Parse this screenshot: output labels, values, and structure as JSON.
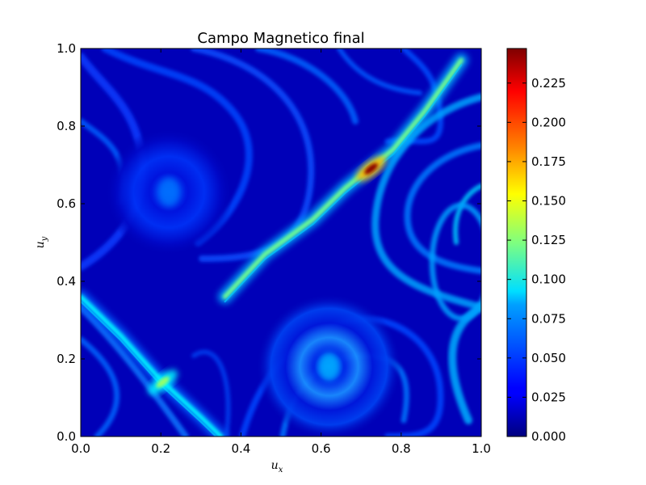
{
  "chart_data": {
    "type": "heatmap",
    "title": "Campo Magnetico final",
    "xlabel": "u",
    "xlabel_sub": "x",
    "ylabel": "u",
    "ylabel_sub": "y",
    "xlim": [
      0.0,
      1.0
    ],
    "ylim": [
      0.0,
      1.0
    ],
    "xticks": [
      "0.0",
      "0.2",
      "0.4",
      "0.6",
      "0.8",
      "1.0"
    ],
    "yticks": [
      "0.0",
      "0.2",
      "0.4",
      "0.6",
      "0.8",
      "1.0"
    ],
    "colormap": "jet",
    "colorbar": {
      "min": 0.0,
      "max": 0.247,
      "ticks": [
        "0.000",
        "0.025",
        "0.050",
        "0.075",
        "0.100",
        "0.125",
        "0.150",
        "0.175",
        "0.200",
        "0.225"
      ]
    },
    "grid": false,
    "features": [
      {
        "kind": "ridge",
        "path": [
          [
            0.36,
            0.36
          ],
          [
            0.46,
            0.47
          ],
          [
            0.58,
            0.56
          ],
          [
            0.66,
            0.64
          ],
          [
            0.72,
            0.69
          ],
          [
            0.78,
            0.74
          ],
          [
            0.86,
            0.84
          ],
          [
            0.95,
            0.97
          ]
        ],
        "peak": 0.12
      },
      {
        "kind": "spot",
        "x": 0.725,
        "y": 0.69,
        "value": 0.245
      },
      {
        "kind": "ridge",
        "path": [
          [
            0.0,
            0.36
          ],
          [
            0.1,
            0.26
          ],
          [
            0.2,
            0.145
          ],
          [
            0.3,
            0.05
          ],
          [
            0.35,
            0.0
          ]
        ],
        "peak": 0.09
      },
      {
        "kind": "spot",
        "x": 0.205,
        "y": 0.14,
        "value": 0.13
      },
      {
        "kind": "vortex",
        "x": 0.22,
        "y": 0.63,
        "value": 0.035
      },
      {
        "kind": "vortex",
        "x": 0.62,
        "y": 0.18,
        "value": 0.05
      },
      {
        "kind": "arc",
        "x": 0.95,
        "y": 0.45,
        "value": 0.07
      }
    ]
  },
  "colors": {
    "jet_stops": [
      "#00007f",
      "#0000ff",
      "#007fff",
      "#00ffff",
      "#7fff7f",
      "#ffff00",
      "#ff7f00",
      "#ff0000",
      "#7f0000"
    ]
  }
}
